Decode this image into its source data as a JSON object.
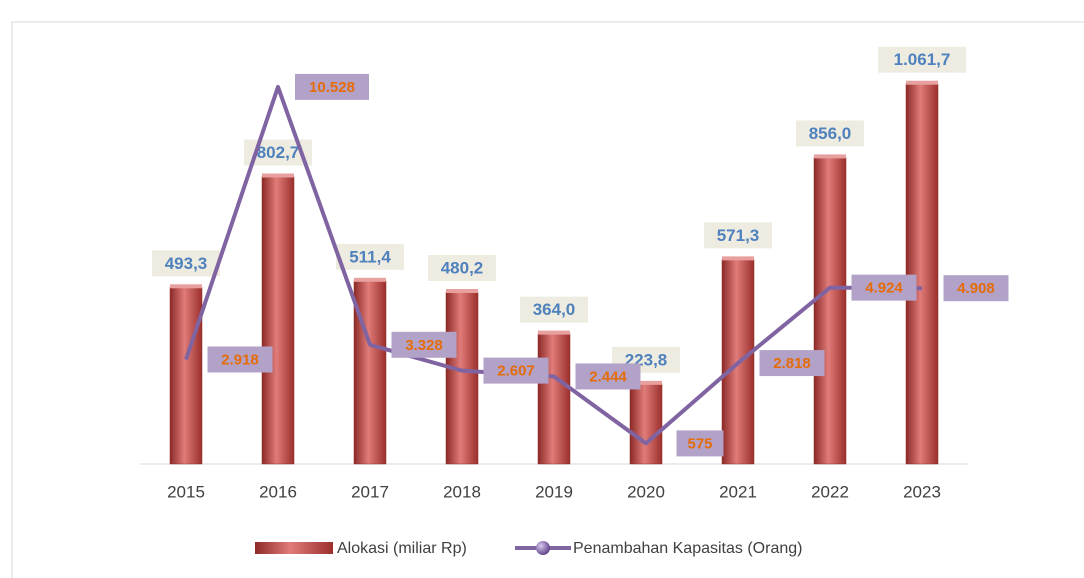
{
  "chart_data": {
    "type": "bar_line",
    "categories": [
      "2015",
      "2016",
      "2017",
      "2018",
      "2019",
      "2020",
      "2021",
      "2022",
      "2023"
    ],
    "ylim": [
      0,
      1100
    ],
    "y2lim": [
      0,
      11000
    ],
    "series": [
      {
        "name": "Alokasi (miliar Rp)",
        "type": "bar",
        "color": "#c0504d",
        "values": [
          493.3,
          802.7,
          511.4,
          480.2,
          364.0,
          223.8,
          571.3,
          856.0,
          1061.7
        ],
        "value_labels": [
          "493,3",
          "802,7",
          "511,4",
          "480,2",
          "364,0",
          "223,8",
          "571,3",
          "856,0",
          "1.061,7"
        ]
      },
      {
        "name": "Penambahan Kapasitas (Orang)",
        "type": "line",
        "axis": "y2",
        "color": "#8064a2",
        "values": [
          2918,
          10528,
          3328,
          2607,
          2444,
          575,
          2818,
          4924,
          4908
        ],
        "value_labels": [
          "2.918",
          "10.528",
          "3.328",
          "2.607",
          "2.444",
          "575",
          "2.818",
          "4.924",
          "4.908"
        ]
      }
    ],
    "legend": "bottom"
  }
}
